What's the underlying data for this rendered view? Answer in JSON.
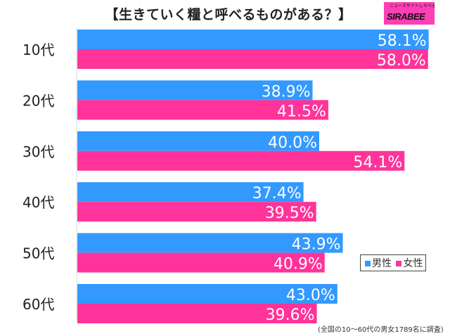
{
  "header": {
    "title": "【生きていく糧と呼べるものがある？】",
    "logo_text": "SIRABEE",
    "logo_subtext": "ニュースサイトしらべぇ"
  },
  "colors": {
    "male": "#3399ff",
    "female": "#ff3399",
    "logo_bg": "#ff3fb4"
  },
  "chart_data": {
    "type": "bar",
    "orientation": "horizontal",
    "title": "【生きていく糧と呼べるものがある？】",
    "categories": [
      "10代",
      "20代",
      "30代",
      "40代",
      "50代",
      "60代"
    ],
    "series": [
      {
        "name": "男性",
        "values": [
          58.1,
          38.9,
          40.0,
          37.4,
          43.9,
          43.0
        ],
        "labels": [
          "58.1%",
          "38.9%",
          "40.0%",
          "37.4%",
          "43.9%",
          "43.0%"
        ]
      },
      {
        "name": "女性",
        "values": [
          58.0,
          41.5,
          54.1,
          39.5,
          40.9,
          39.6
        ],
        "labels": [
          "58.0%",
          "41.5%",
          "54.1%",
          "39.5%",
          "40.9%",
          "39.6%"
        ]
      }
    ],
    "xlabel": "",
    "ylabel": "",
    "xlim": [
      0,
      60
    ],
    "grid": false,
    "legend_position": "bottom-right",
    "footnote": "(全国の10～60代の男女1789名に調査)"
  },
  "legend": {
    "male_label": "男性",
    "female_label": "女性"
  },
  "footnote": "(全国の10～60代の男女1789名に調査)"
}
